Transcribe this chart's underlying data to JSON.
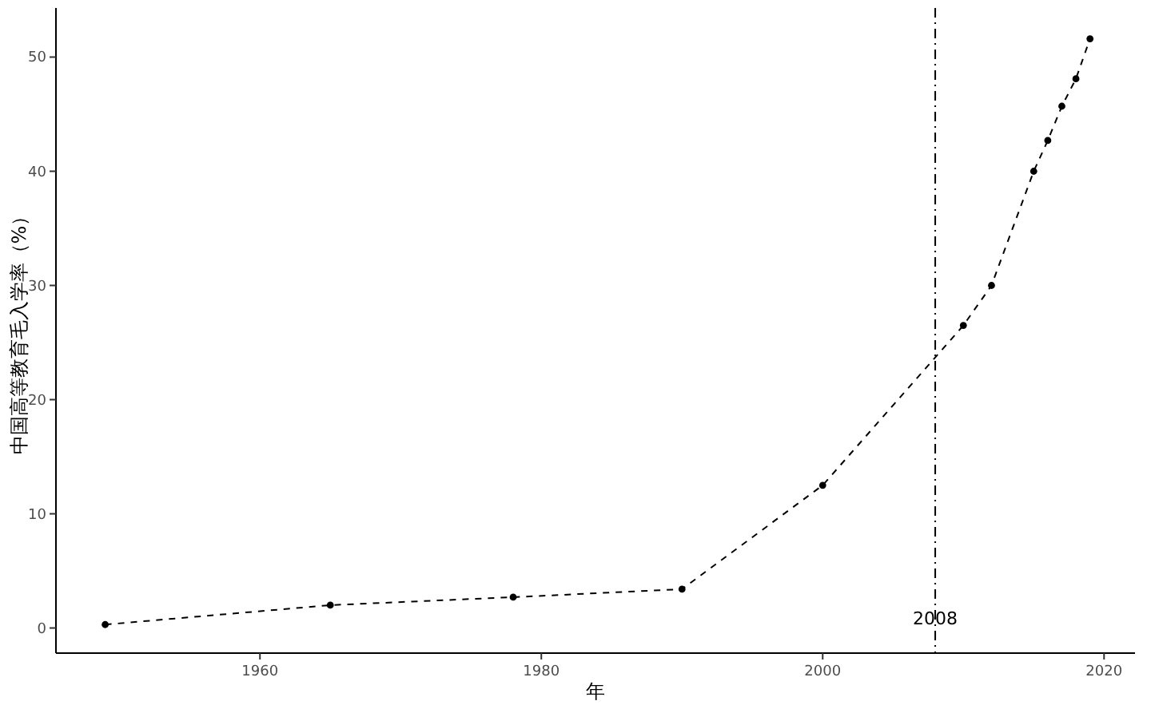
{
  "chart_data": {
    "type": "line",
    "xlabel": "年",
    "ylabel": "中国高等教育毛入学率（%）",
    "x": [
      1949,
      1965,
      1978,
      1990,
      2000,
      2010,
      2012,
      2015,
      2016,
      2017,
      2018,
      2019
    ],
    "series": [
      {
        "color": "#000000",
        "values": [
          0.3,
          2.0,
          2.7,
          3.4,
          12.5,
          26.5,
          30.0,
          40.0,
          42.7,
          45.7,
          48.1,
          51.6
        ]
      }
    ],
    "xlim": [
      1945.5,
      2022.2
    ],
    "ylim": [
      -2.2,
      54.3
    ],
    "xticks": [
      1960,
      1980,
      2000,
      2020
    ],
    "yticks": [
      0,
      10,
      20,
      30,
      40,
      50
    ],
    "ref_lines": [
      {
        "axis": "x",
        "value": 2008,
        "label": "2008",
        "color": "#000000",
        "line_style": "dashdot"
      }
    ],
    "marker": "circle",
    "line_style": "dashed",
    "grid": false
  }
}
